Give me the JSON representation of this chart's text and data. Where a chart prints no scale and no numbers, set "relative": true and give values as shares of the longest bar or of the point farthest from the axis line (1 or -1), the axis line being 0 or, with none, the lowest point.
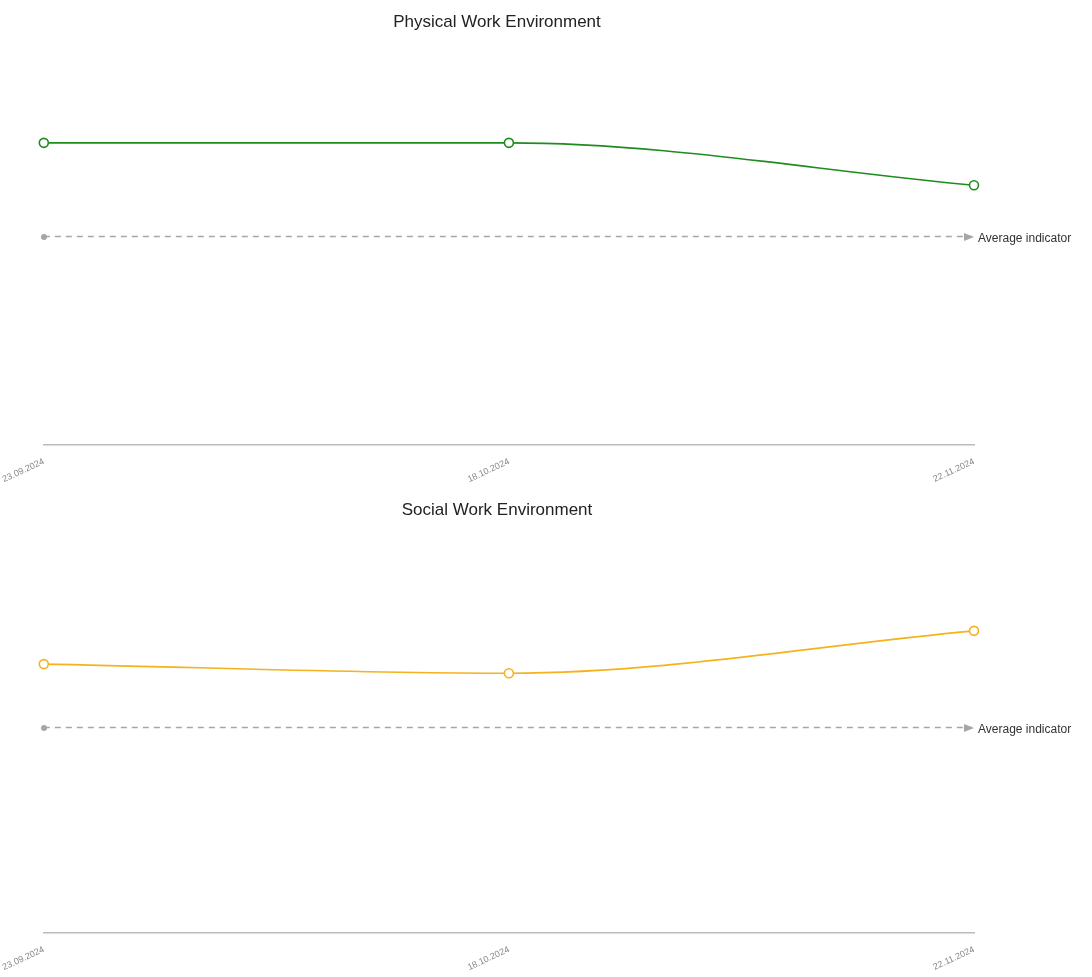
{
  "chart_data": [
    {
      "type": "line",
      "title": "Physical Work Environment",
      "categories": [
        "23.09.2024",
        "18.10.2024",
        "22.11.2024"
      ],
      "relative": true,
      "marker": "circle",
      "series": [
        {
          "color": "#1e8c1e",
          "values": [
            1,
            1,
            0.86
          ]
        }
      ],
      "ref_lines": [
        {
          "axis": "y",
          "value": 0.69,
          "label": "Average indicator",
          "color": "#a6a6a6",
          "line_style": "dashed"
        }
      ]
    },
    {
      "type": "line",
      "title": "Social Work Environment",
      "categories": [
        "23.09.2024",
        "18.10.2024",
        "22.11.2024"
      ],
      "relative": true,
      "marker": "circle",
      "series": [
        {
          "color": "#f5b21c",
          "values": [
            0.89,
            0.86,
            1
          ]
        }
      ],
      "ref_lines": [
        {
          "axis": "y",
          "value": 0.68,
          "label": "Average indicator",
          "color": "#a6a6a6",
          "line_style": "dashed"
        }
      ]
    }
  ]
}
